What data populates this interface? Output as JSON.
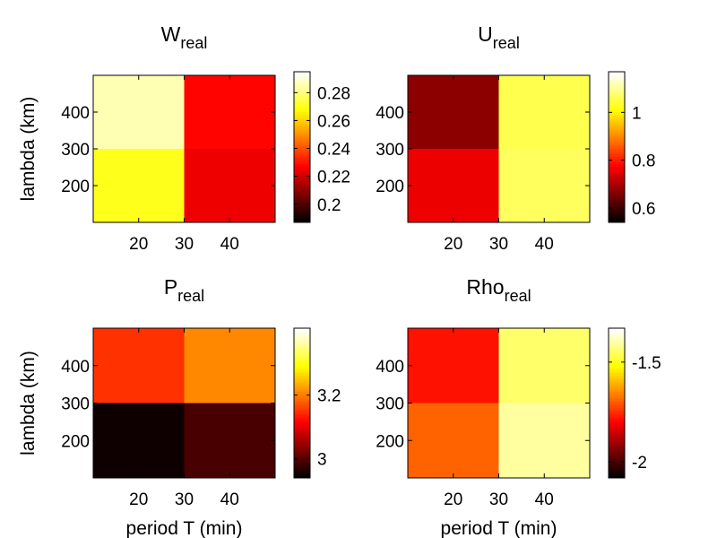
{
  "chart_data": [
    {
      "type": "heatmap",
      "title": "W",
      "title_subscript": "real",
      "x": [
        20,
        40
      ],
      "y": [
        200,
        400
      ],
      "xticks": [
        "20",
        "30",
        "40"
      ],
      "yticks": [
        "200",
        "300",
        "400"
      ],
      "xlabel": "",
      "ylabel": "lambda (km)",
      "colormap": "hot",
      "clim": [
        0.187,
        0.295
      ],
      "colorbar_ticks": [
        "0.2",
        "0.22",
        "0.24",
        "0.26",
        "0.28"
      ],
      "colorbar_tick_values": [
        0.2,
        0.22,
        0.24,
        0.26,
        0.28
      ],
      "z": [
        [
          0.271,
          0.225
        ],
        [
          0.287,
          0.228
        ]
      ]
    },
    {
      "type": "heatmap",
      "title": "U",
      "title_subscript": "real",
      "x": [
        20,
        40
      ],
      "y": [
        200,
        400
      ],
      "xticks": [
        "20",
        "30",
        "40"
      ],
      "yticks": [
        "200",
        "300",
        "400"
      ],
      "xlabel": "",
      "ylabel": "",
      "colormap": "hot",
      "clim": [
        0.54,
        1.17
      ],
      "colorbar_ticks": [
        "0.6",
        "0.8",
        "1"
      ],
      "colorbar_tick_values": [
        0.6,
        0.8,
        1.0
      ],
      "z": [
        [
          0.76,
          1.07
        ],
        [
          0.67,
          1.06
        ]
      ]
    },
    {
      "type": "heatmap",
      "title": "P",
      "title_subscript": "real",
      "x": [
        20,
        40
      ],
      "y": [
        200,
        400
      ],
      "xticks": [
        "20",
        "30",
        "40"
      ],
      "yticks": [
        "200",
        "300",
        "400"
      ],
      "xlabel": "period T (min)",
      "ylabel": "lambda (km)",
      "colormap": "hot",
      "clim": [
        2.94,
        3.41
      ],
      "colorbar_ticks": [
        "3",
        "3.2"
      ],
      "colorbar_tick_values": [
        3.0,
        3.2
      ],
      "z": [
        [
          2.95,
          2.99
        ],
        [
          3.15,
          3.21
        ]
      ]
    },
    {
      "type": "heatmap",
      "title": "Rho",
      "title_subscript": "real",
      "x": [
        20,
        40
      ],
      "y": [
        200,
        400
      ],
      "xticks": [
        "20",
        "30",
        "40"
      ],
      "yticks": [
        "200",
        "300",
        "400"
      ],
      "xlabel": "period T (min)",
      "ylabel": "",
      "colormap": "hot",
      "clim": [
        -2.08,
        -1.33
      ],
      "colorbar_ticks": [
        "-2",
        "-1.5"
      ],
      "colorbar_tick_values": [
        -2.0,
        -1.5
      ],
      "z": [
        [
          -1.69,
          -1.4
        ],
        [
          -1.78,
          -1.44
        ]
      ]
    }
  ]
}
